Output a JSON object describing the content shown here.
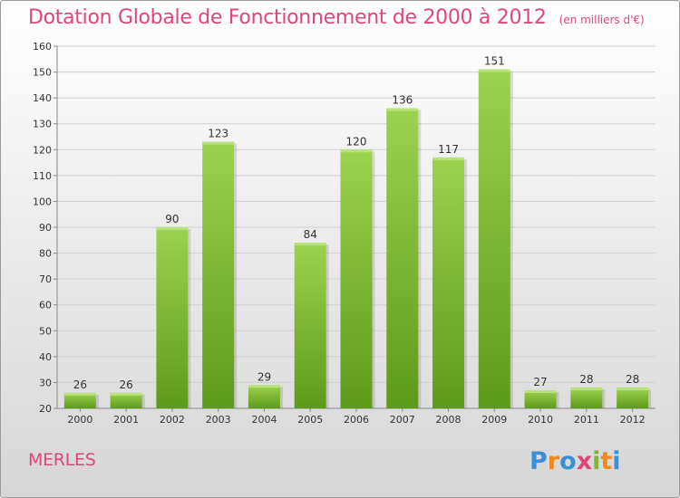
{
  "header": {
    "title": "Dotation Globale de Fonctionnement de 2000 à 2012",
    "subtitle": "(en milliers d'€)"
  },
  "footer": {
    "commune": "MERLES",
    "brand": "Proxiti"
  },
  "colors": {
    "accent": "#e0457b",
    "bar_top": "#9dd24f",
    "bar_bottom": "#5e9a1a",
    "grid": "#d0d0d0"
  },
  "chart_data": {
    "type": "bar",
    "title": "Dotation Globale de Fonctionnement de 2000 à 2012",
    "subtitle": "(en milliers d'€)",
    "categories": [
      "2000",
      "2001",
      "2002",
      "2003",
      "2004",
      "2005",
      "2006",
      "2007",
      "2008",
      "2009",
      "2010",
      "2011",
      "2012"
    ],
    "values": [
      26,
      26,
      90,
      123,
      29,
      84,
      120,
      136,
      117,
      151,
      27,
      28,
      28
    ],
    "ylim": [
      20,
      160
    ],
    "yticks": [
      20,
      30,
      40,
      50,
      60,
      70,
      80,
      90,
      100,
      110,
      120,
      130,
      140,
      150,
      160
    ],
    "grid": true,
    "legend": "none"
  }
}
